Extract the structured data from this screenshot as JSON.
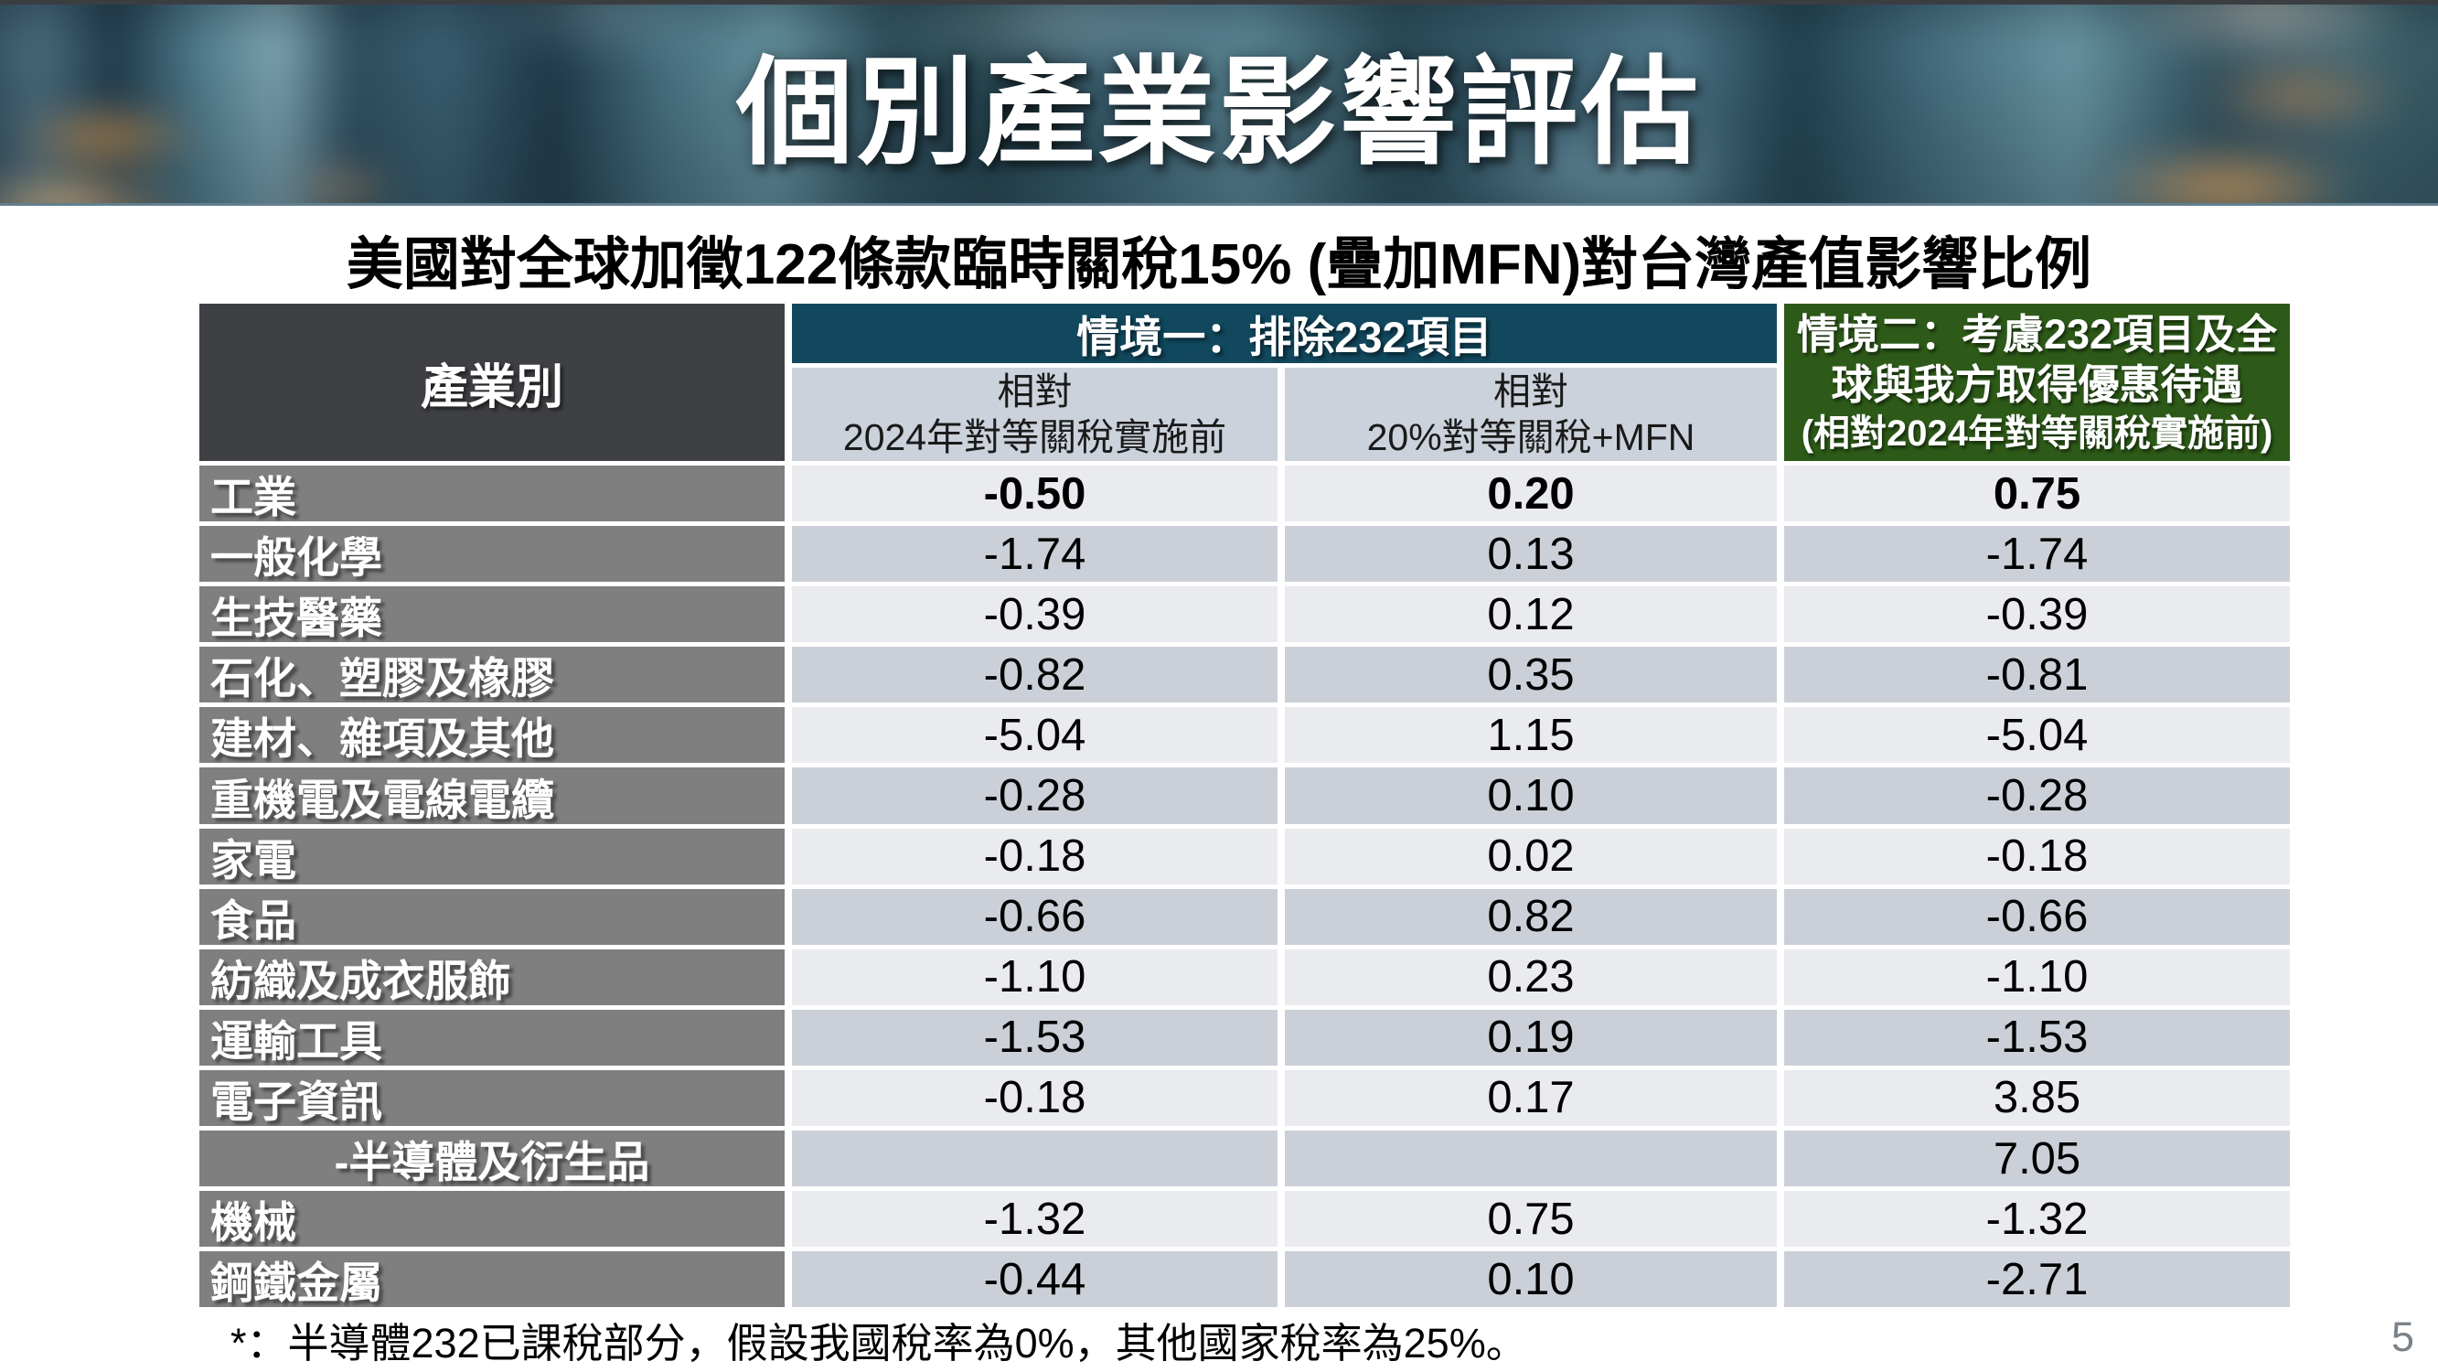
{
  "banner": {
    "title": "個別產業影響評估"
  },
  "subtitle": "美國對全球加徵122條款臨時關稅15% (疊加MFN)對台灣產值影響比例",
  "table": {
    "industry_header": "產業別",
    "scenario1": {
      "header": "情境一：排除232項目",
      "sub_pre2024": "相對\n2024年對等關稅實施前",
      "sub_mfn": "相對\n20%對等關稅+MFN"
    },
    "scenario2": {
      "header_main": "情境二：考慮232項目及全\n球與我方取得優惠待遇",
      "header_note": "(相對2024年對等關稅實施前)"
    },
    "rows": [
      {
        "label": "工業",
        "v1": "-0.50",
        "v2": "0.20",
        "v3": "0.75",
        "bold": true
      },
      {
        "label": "一般化學",
        "v1": "-1.74",
        "v2": "0.13",
        "v3": "-1.74"
      },
      {
        "label": "生技醫藥",
        "v1": "-0.39",
        "v2": "0.12",
        "v3": "-0.39"
      },
      {
        "label": "石化、塑膠及橡膠",
        "v1": "-0.82",
        "v2": "0.35",
        "v3": "-0.81"
      },
      {
        "label": "建材、雜項及其他",
        "v1": "-5.04",
        "v2": "1.15",
        "v3": "-5.04"
      },
      {
        "label": "重機電及電線電纜",
        "v1": "-0.28",
        "v2": "0.10",
        "v3": "-0.28"
      },
      {
        "label": "家電",
        "v1": "-0.18",
        "v2": "0.02",
        "v3": "-0.18"
      },
      {
        "label": "食品",
        "v1": "-0.66",
        "v2": "0.82",
        "v3": "-0.66"
      },
      {
        "label": "紡織及成衣服飾",
        "v1": "-1.10",
        "v2": "0.23",
        "v3": "-1.10"
      },
      {
        "label": "運輸工具",
        "v1": "-1.53",
        "v2": "0.19",
        "v3": "-1.53"
      },
      {
        "label": "電子資訊",
        "v1": "-0.18",
        "v2": "0.17",
        "v3": "3.85"
      },
      {
        "label": "-半導體及衍生品",
        "v1": "",
        "v2": "",
        "v3": "7.05",
        "indent": true
      },
      {
        "label": "機械",
        "v1": "-1.32",
        "v2": "0.75",
        "v3": "-1.32"
      },
      {
        "label": "鋼鐵金屬",
        "v1": "-0.44",
        "v2": "0.10",
        "v3": "-2.71"
      }
    ]
  },
  "footnote": "*：半導體232已課稅部分，假設我國稅率為0%，其他國家稅率為25%。",
  "page_number": "5",
  "colors": {
    "scenario1_header_bg": "#11485e",
    "scenario2_header_bg": "#2d5a18",
    "industry_header_bg": "#3f4044",
    "label_bg": "#7f7f7f",
    "subheader_bg": "#ccd2db",
    "row_light_bg": "#e9ebef",
    "row_dark_bg": "#cbd0d8",
    "banner_base": "#3d5866"
  }
}
